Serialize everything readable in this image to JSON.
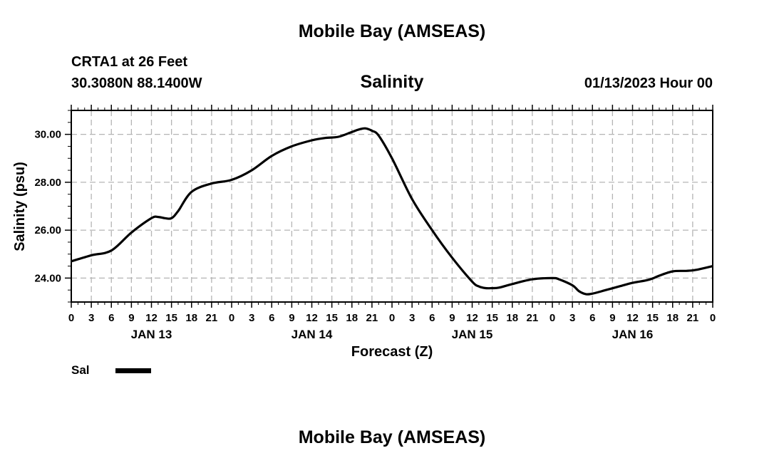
{
  "header": {
    "title": "Mobile Bay (AMSEAS)",
    "station": "CRTA1 at 26 Feet",
    "coords": "30.3080N  88.1400W",
    "parameter": "Salinity",
    "datetime": "01/13/2023 Hour 00"
  },
  "footer": {
    "title": "Mobile Bay (AMSEAS)"
  },
  "chart_data": {
    "type": "line",
    "title": "Salinity",
    "xlabel": "Forecast (Z)",
    "ylabel": "Salinity (psu)",
    "xlim": [
      0,
      96
    ],
    "ylim": [
      23.0,
      31.0
    ],
    "grid": true,
    "legend_placement": "bottom-left",
    "x_tick_labels": [
      "0",
      "3",
      "6",
      "9",
      "12",
      "15",
      "18",
      "21",
      "0",
      "3",
      "6",
      "9",
      "12",
      "15",
      "18",
      "21",
      "0",
      "3",
      "6",
      "9",
      "12",
      "15",
      "18",
      "21",
      "0",
      "3",
      "6",
      "9",
      "12",
      "15",
      "18",
      "21",
      "0"
    ],
    "y_ticks": [
      24.0,
      26.0,
      28.0,
      30.0
    ],
    "y_tick_labels": [
      "24.00",
      "26.00",
      "28.00",
      "30.00"
    ],
    "day_labels": [
      {
        "label": "JAN 13",
        "x": 12
      },
      {
        "label": "JAN 14",
        "x": 36
      },
      {
        "label": "JAN 15",
        "x": 60
      },
      {
        "label": "JAN 16",
        "x": 84
      }
    ],
    "series": [
      {
        "name": "Sal",
        "color": "#000000",
        "x": [
          0,
          3,
          6,
          9,
          12,
          13,
          14,
          15,
          16,
          18,
          21,
          24,
          27,
          30,
          33,
          36,
          38,
          40,
          42,
          43,
          44,
          45,
          46,
          48,
          51,
          54,
          57,
          60,
          61,
          62,
          63,
          64,
          66,
          69,
          72,
          73,
          75,
          76,
          77,
          78,
          80,
          82,
          84,
          86,
          87,
          88,
          90,
          92,
          93,
          94,
          96
        ],
        "y": [
          24.7,
          24.95,
          25.15,
          25.9,
          26.5,
          26.55,
          26.5,
          26.5,
          26.8,
          27.6,
          27.95,
          28.1,
          28.5,
          29.1,
          29.5,
          29.75,
          29.85,
          29.9,
          30.1,
          30.2,
          30.25,
          30.15,
          29.95,
          29.0,
          27.3,
          26.0,
          24.85,
          23.85,
          23.65,
          23.58,
          23.58,
          23.6,
          23.75,
          23.95,
          24.0,
          23.95,
          23.7,
          23.45,
          23.33,
          23.35,
          23.5,
          23.65,
          23.8,
          23.9,
          23.98,
          24.1,
          24.28,
          24.3,
          24.32,
          24.37,
          24.5
        ]
      }
    ]
  }
}
